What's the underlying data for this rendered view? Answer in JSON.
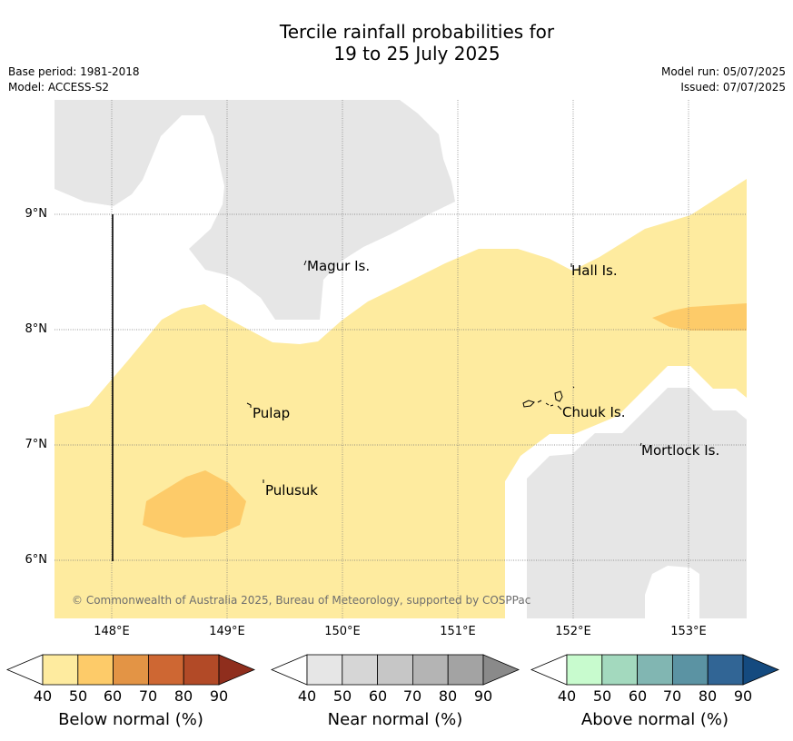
{
  "header": {
    "title_line1": "Tercile rainfall probabilities for",
    "title_line2": "19 to 25 July 2025",
    "base_period": "Base period: 1981-2018",
    "model": "Model: ACCESS-S2",
    "model_run": "Model run: 05/07/2025",
    "issued": "Issued: 07/07/2025"
  },
  "map": {
    "lon_range": [
      147.5,
      153.5
    ],
    "lat_range": [
      5.5,
      10.0
    ],
    "lat_ticks": [
      "9°N",
      "8°N",
      "7°N",
      "6°N"
    ],
    "lon_ticks": [
      "148°E",
      "149°E",
      "150°E",
      "151°E",
      "152°E",
      "153°E"
    ],
    "places": [
      "Magur Is.",
      "Hall Is.",
      "Pulap",
      "Chuuk Is.",
      "Pulusuk",
      "Mortlock Is."
    ],
    "copyright": "© Commonwealth of Australia 2025, Bureau of Meteorology, supported by COSPPac",
    "colors": {
      "near_normal_fill": "#e6e6e6",
      "below_40_50": "#feeb9f",
      "below_50_60": "#fdcb69"
    }
  },
  "colorbars": [
    {
      "title": "Below normal (%)",
      "ticks": [
        "40",
        "50",
        "60",
        "70",
        "80",
        "90"
      ],
      "colors": [
        "#feeb9f",
        "#fdcb69",
        "#e39445",
        "#ce6733",
        "#b24a27",
        "#8f2e1d"
      ]
    },
    {
      "title": "Near normal (%)",
      "ticks": [
        "40",
        "50",
        "60",
        "70",
        "80",
        "90"
      ],
      "colors": [
        "#e6e6e6",
        "#d6d6d6",
        "#c6c6c6",
        "#b4b4b4",
        "#a3a3a3",
        "#8a8a8a"
      ]
    },
    {
      "title": "Above normal (%)",
      "ticks": [
        "40",
        "50",
        "60",
        "70",
        "80",
        "90"
      ],
      "colors": [
        "#c8fbce",
        "#a3d9be",
        "#81b6b2",
        "#5b93a3",
        "#316595",
        "#144a7f"
      ]
    }
  ]
}
